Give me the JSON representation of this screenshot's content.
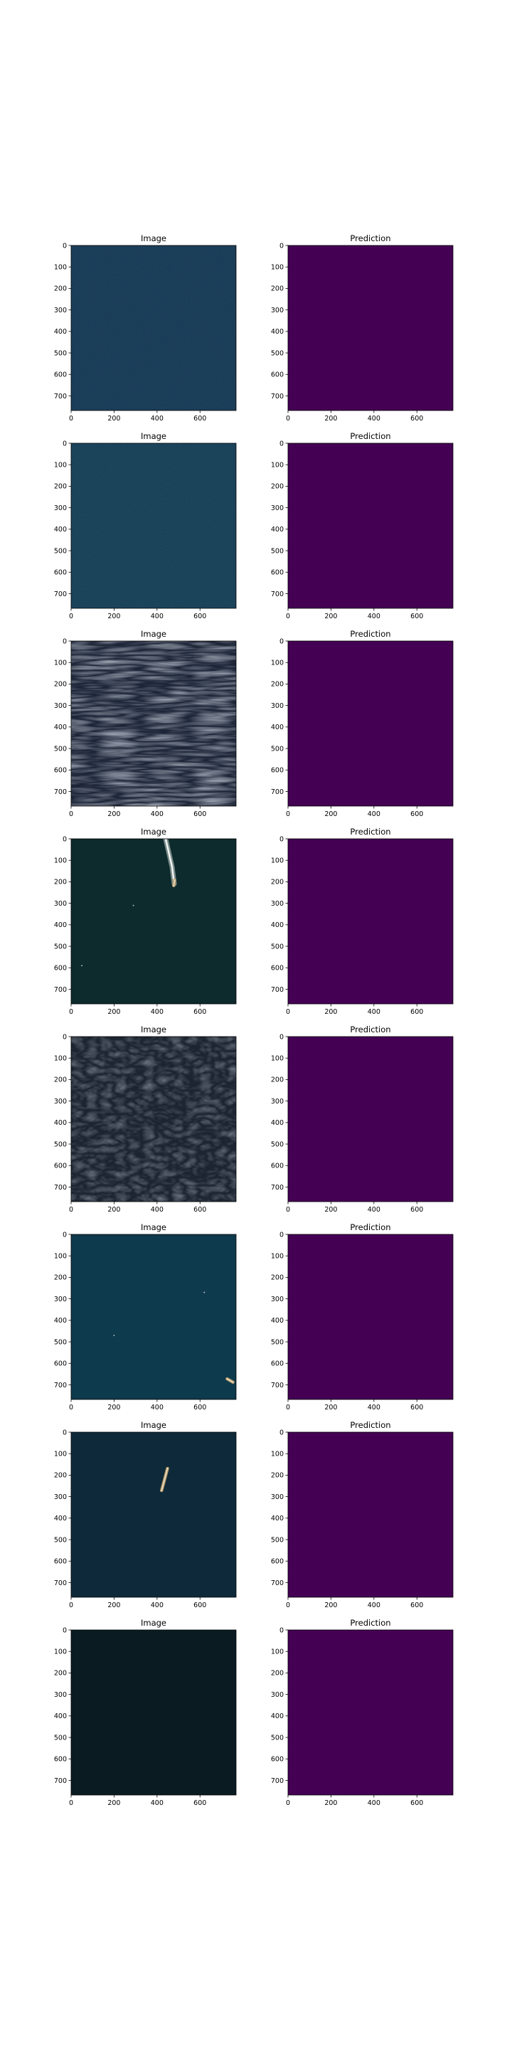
{
  "figure": {
    "panels": [
      {
        "row": 0,
        "col": 0,
        "title": "Image",
        "kind": "image",
        "bg": "#0f3450",
        "features": [
          {
            "type": "texture",
            "value": "calm sea"
          }
        ]
      },
      {
        "row": 0,
        "col": 1,
        "title": "Prediction",
        "kind": "mask",
        "bg": "#440154",
        "features": []
      },
      {
        "row": 1,
        "col": 0,
        "title": "Image",
        "kind": "image",
        "bg": "#0f3a52",
        "features": [
          {
            "type": "texture",
            "value": "calm sea"
          }
        ]
      },
      {
        "row": 1,
        "col": 1,
        "title": "Prediction",
        "kind": "mask",
        "bg": "#440154",
        "features": []
      },
      {
        "row": 2,
        "col": 0,
        "title": "Image",
        "kind": "image",
        "bg": "#1c2537",
        "features": [
          {
            "type": "texture",
            "value": "wavy sea"
          }
        ]
      },
      {
        "row": 2,
        "col": 1,
        "title": "Prediction",
        "kind": "mask",
        "bg": "#440154",
        "features": []
      },
      {
        "row": 3,
        "col": 0,
        "title": "Image",
        "kind": "image",
        "bg": "#0d2a2c",
        "features": [
          {
            "type": "wake",
            "points": [
              [
                440,
                0
              ],
              [
                470,
                130
              ],
              [
                480,
                210
              ]
            ]
          },
          {
            "type": "ship",
            "x": 480,
            "y": 205,
            "rot": 80,
            "len": 40
          },
          {
            "type": "speck",
            "x": 290,
            "y": 310
          },
          {
            "type": "speck",
            "x": 50,
            "y": 590
          }
        ]
      },
      {
        "row": 3,
        "col": 1,
        "title": "Prediction",
        "kind": "mask",
        "bg": "#440154",
        "features": []
      },
      {
        "row": 4,
        "col": 0,
        "title": "Image",
        "kind": "image",
        "bg": "#1b2430",
        "features": [
          {
            "type": "texture",
            "value": "rough sea"
          }
        ]
      },
      {
        "row": 4,
        "col": 1,
        "title": "Prediction",
        "kind": "mask",
        "bg": "#440154",
        "features": []
      },
      {
        "row": 5,
        "col": 0,
        "title": "Image",
        "kind": "image",
        "bg": "#0d3a4c",
        "features": [
          {
            "type": "speck",
            "x": 620,
            "y": 270
          },
          {
            "type": "speck",
            "x": 200,
            "y": 470
          },
          {
            "type": "ship",
            "x": 740,
            "y": 680,
            "rot": -30,
            "len": 45
          }
        ]
      },
      {
        "row": 5,
        "col": 1,
        "title": "Prediction",
        "kind": "mask",
        "bg": "#440154",
        "features": []
      },
      {
        "row": 6,
        "col": 0,
        "title": "Image",
        "kind": "image",
        "bg": "#0e2a3a",
        "features": [
          {
            "type": "ship",
            "x": 435,
            "y": 220,
            "rot": 75,
            "len": 120
          }
        ]
      },
      {
        "row": 6,
        "col": 1,
        "title": "Prediction",
        "kind": "mask",
        "bg": "#440154",
        "features": []
      },
      {
        "row": 7,
        "col": 0,
        "title": "Image",
        "kind": "image",
        "bg": "#0a1c22",
        "features": []
      },
      {
        "row": 7,
        "col": 1,
        "title": "Prediction",
        "kind": "mask",
        "bg": "#440154",
        "features": []
      }
    ]
  },
  "chart_data": {
    "type": "heatmap",
    "rows": 8,
    "cols": 2,
    "panel_titles": [
      "Image",
      "Prediction"
    ],
    "xlim": [
      0,
      768
    ],
    "ylim": [
      768,
      0
    ],
    "xticks": [
      0,
      200,
      400,
      600
    ],
    "yticks": [
      0,
      100,
      200,
      300,
      400,
      500,
      600,
      700
    ],
    "xlabel": "",
    "ylabel": "",
    "prediction_color": "#440154",
    "grid": false,
    "legend": "none"
  }
}
